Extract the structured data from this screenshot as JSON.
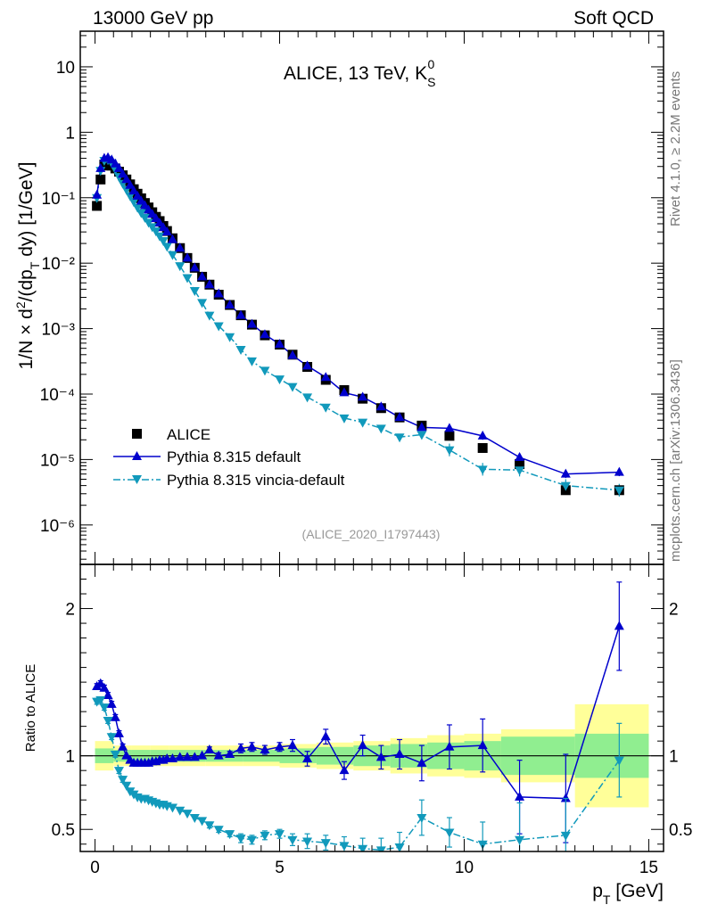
{
  "header": {
    "left": "13000 GeV pp",
    "right": "Soft QCD"
  },
  "side_labels": {
    "top": "Rivet 4.1.0, ≥ 2.2M events",
    "bottom": "mcplots.cern.ch [arXiv:1306.3436]"
  },
  "chart_data": [
    {
      "type": "scatter",
      "panel": "main",
      "title": "ALICE, 13 TeV, K",
      "title_sup": "0",
      "title_sub": "S",
      "analysis_id": "(ALICE_2020_I1797443)",
      "ylabel": "1/N × d²/(dp_T dy) [1/GeV]",
      "yscale": "log",
      "ylim": [
        2.5e-07,
        35
      ],
      "xlim": [
        -0.4,
        15.4
      ],
      "ytick_labels": [
        "10",
        "1",
        "10⁻¹",
        "10⁻²",
        "10⁻³",
        "10⁻⁴",
        "10⁻⁵",
        "10⁻⁶"
      ],
      "legend": {
        "position": "bottom-left",
        "entries": [
          "ALICE",
          "Pythia 8.315 default",
          "Pythia 8.315 vincia-default"
        ]
      },
      "x": [
        0.05,
        0.15,
        0.25,
        0.35,
        0.45,
        0.55,
        0.65,
        0.75,
        0.85,
        0.95,
        1.05,
        1.15,
        1.25,
        1.35,
        1.45,
        1.55,
        1.65,
        1.75,
        1.85,
        1.95,
        2.1,
        2.3,
        2.5,
        2.7,
        2.9,
        3.1,
        3.35,
        3.65,
        3.95,
        4.25,
        4.6,
        5.0,
        5.35,
        5.75,
        6.25,
        6.75,
        7.25,
        7.75,
        8.25,
        8.85,
        9.6,
        10.5,
        11.5,
        12.75,
        14.2
      ],
      "series": [
        {
          "name": "ALICE",
          "style": "black-square",
          "values": [
            0.075,
            0.19,
            0.32,
            0.31,
            0.31,
            0.28,
            0.25,
            0.22,
            0.19,
            0.16,
            0.135,
            0.115,
            0.098,
            0.083,
            0.071,
            0.06,
            0.051,
            0.044,
            0.037,
            0.031,
            0.024,
            0.017,
            0.012,
            0.0085,
            0.0062,
            0.0047,
            0.0033,
            0.0023,
            0.0016,
            0.00115,
            0.00079,
            0.00057,
            0.0004,
            0.00026,
            0.000165,
            0.000115,
            8.5e-05,
            6.1e-05,
            4.4e-05,
            3.3e-05,
            2.3e-05,
            1.5e-05,
            8.5e-06,
            3.4e-06,
            3.4e-06
          ]
        },
        {
          "name": "Pythia 8.315 default",
          "style": "blue-triangle-up-solid",
          "values": [
            0.11,
            0.28,
            0.4,
            0.41,
            0.38,
            0.33,
            0.28,
            0.23,
            0.19,
            0.155,
            0.127,
            0.106,
            0.089,
            0.076,
            0.065,
            0.056,
            0.048,
            0.041,
            0.035,
            0.03,
            0.023,
            0.017,
            0.012,
            0.0085,
            0.0062,
            0.0047,
            0.0034,
            0.0023,
            0.0016,
            0.00117,
            0.00081,
            0.00058,
            0.00039,
            0.00027,
            0.00018,
            0.000105,
            9e-05,
            6.4e-05,
            4.4e-05,
            3.1e-05,
            3e-05,
            2.3e-05,
            1.08e-05,
            6e-06,
            6.4e-06
          ]
        },
        {
          "name": "Pythia 8.315 vincia-default",
          "style": "teal-triangle-down-dashdot",
          "values": [
            0.1,
            0.26,
            0.37,
            0.38,
            0.34,
            0.27,
            0.21,
            0.165,
            0.133,
            0.107,
            0.087,
            0.071,
            0.059,
            0.05,
            0.042,
            0.036,
            0.031,
            0.026,
            0.022,
            0.018,
            0.0135,
            0.0091,
            0.006,
            0.0038,
            0.0025,
            0.0016,
            0.0011,
            0.00075,
            0.00048,
            0.00032,
            0.00023,
            0.00017,
            0.00013,
            9e-05,
            6.3e-05,
            4.3e-05,
            3.7e-05,
            3e-05,
            2.2e-05,
            2.4e-05,
            1.4e-05,
            7.1e-06,
            6.9e-06,
            4e-06,
            3.4e-06
          ]
        }
      ]
    },
    {
      "type": "scatter",
      "panel": "ratio",
      "ylabel": "Ratio to ALICE",
      "xlabel": "p_T [GeV]",
      "ylim": [
        0.35,
        2.3
      ],
      "xlim": [
        -0.4,
        15.4
      ],
      "xtick_labels": [
        "0",
        "5",
        "10",
        "15"
      ],
      "ytick_labels": [
        "0.5",
        "1",
        "2"
      ],
      "bands": [
        {
          "name": "stat-sys-inner",
          "color": "#90ee90",
          "edges": [
            0,
            0.5,
            1,
            1.5,
            2,
            3,
            4,
            5,
            6,
            7,
            8,
            9,
            10,
            11,
            13,
            15
          ],
          "halfwidths": [
            0.05,
            0.04,
            0.04,
            0.04,
            0.04,
            0.04,
            0.04,
            0.05,
            0.06,
            0.07,
            0.08,
            0.09,
            0.1,
            0.13,
            0.15
          ]
        },
        {
          "name": "stat-sys-outer",
          "color": "#ffff99",
          "edges": [
            0,
            0.5,
            1,
            1.5,
            2,
            3,
            4,
            5,
            6,
            7,
            8,
            9,
            10,
            11,
            13,
            15
          ],
          "halfwidths": [
            0.1,
            0.07,
            0.07,
            0.07,
            0.07,
            0.07,
            0.07,
            0.08,
            0.09,
            0.1,
            0.12,
            0.14,
            0.15,
            0.18,
            0.35
          ]
        }
      ],
      "series": [
        {
          "name": "Pythia 8.315 default",
          "x": [
            0.05,
            0.15,
            0.25,
            0.35,
            0.45,
            0.55,
            0.65,
            0.75,
            0.85,
            0.95,
            1.05,
            1.15,
            1.25,
            1.35,
            1.45,
            1.55,
            1.65,
            1.75,
            1.85,
            1.95,
            2.1,
            2.3,
            2.5,
            2.7,
            2.9,
            3.1,
            3.35,
            3.65,
            3.95,
            4.25,
            4.6,
            5.0,
            5.35,
            5.75,
            6.25,
            6.75,
            7.25,
            7.75,
            8.25,
            8.85,
            9.6,
            10.5,
            11.5,
            12.75,
            14.2
          ],
          "values": [
            1.47,
            1.49,
            1.46,
            1.41,
            1.35,
            1.26,
            1.15,
            1.06,
            1.0,
            0.97,
            0.95,
            0.95,
            0.95,
            0.95,
            0.95,
            0.96,
            0.96,
            0.97,
            0.97,
            0.98,
            0.98,
            0.99,
            0.99,
            0.99,
            1.0,
            1.04,
            1.0,
            1.01,
            1.05,
            1.06,
            1.04,
            1.06,
            1.07,
            0.98,
            1.13,
            0.9,
            1.07,
            0.99,
            1.01,
            0.95,
            1.06,
            1.07,
            0.72,
            0.71,
            1.88
          ],
          "errors": [
            0.02,
            0.02,
            0.02,
            0.02,
            0.02,
            0.02,
            0.02,
            0.02,
            0.01,
            0.01,
            0.01,
            0.01,
            0.01,
            0.01,
            0.01,
            0.01,
            0.01,
            0.01,
            0.01,
            0.01,
            0.01,
            0.01,
            0.01,
            0.01,
            0.01,
            0.02,
            0.02,
            0.02,
            0.03,
            0.03,
            0.03,
            0.03,
            0.04,
            0.05,
            0.05,
            0.06,
            0.07,
            0.08,
            0.1,
            0.12,
            0.15,
            0.18,
            0.25,
            0.3,
            0.3
          ]
        },
        {
          "name": "Pythia 8.315 vincia-default",
          "x": [
            0.05,
            0.15,
            0.25,
            0.35,
            0.45,
            0.55,
            0.65,
            0.75,
            0.85,
            0.95,
            1.05,
            1.15,
            1.25,
            1.35,
            1.45,
            1.55,
            1.65,
            1.75,
            1.85,
            1.95,
            2.1,
            2.3,
            2.5,
            2.7,
            2.9,
            3.1,
            3.35,
            3.65,
            3.95,
            4.25,
            4.6,
            5.0,
            5.35,
            5.75,
            6.25,
            6.75,
            7.25,
            7.75,
            8.25,
            8.85,
            9.6,
            10.5,
            11.5,
            12.75,
            14.2
          ],
          "values": [
            1.37,
            1.38,
            1.33,
            1.24,
            1.13,
            1.01,
            0.9,
            0.84,
            0.8,
            0.76,
            0.74,
            0.72,
            0.71,
            0.71,
            0.7,
            0.69,
            0.68,
            0.67,
            0.67,
            0.66,
            0.65,
            0.63,
            0.61,
            0.58,
            0.56,
            0.53,
            0.5,
            0.47,
            0.44,
            0.43,
            0.46,
            0.47,
            0.43,
            0.42,
            0.41,
            0.39,
            0.37,
            0.36,
            0.38,
            0.58,
            0.48,
            0.4,
            0.43,
            0.46,
            0.97
          ],
          "errors": [
            0.02,
            0.02,
            0.02,
            0.02,
            0.02,
            0.02,
            0.02,
            0.02,
            0.01,
            0.01,
            0.01,
            0.01,
            0.01,
            0.01,
            0.01,
            0.01,
            0.01,
            0.01,
            0.01,
            0.01,
            0.01,
            0.01,
            0.01,
            0.01,
            0.01,
            0.02,
            0.02,
            0.02,
            0.03,
            0.03,
            0.03,
            0.03,
            0.04,
            0.05,
            0.05,
            0.06,
            0.07,
            0.08,
            0.1,
            0.12,
            0.1,
            0.15,
            0.25,
            0.25,
            0.25
          ]
        }
      ]
    }
  ]
}
